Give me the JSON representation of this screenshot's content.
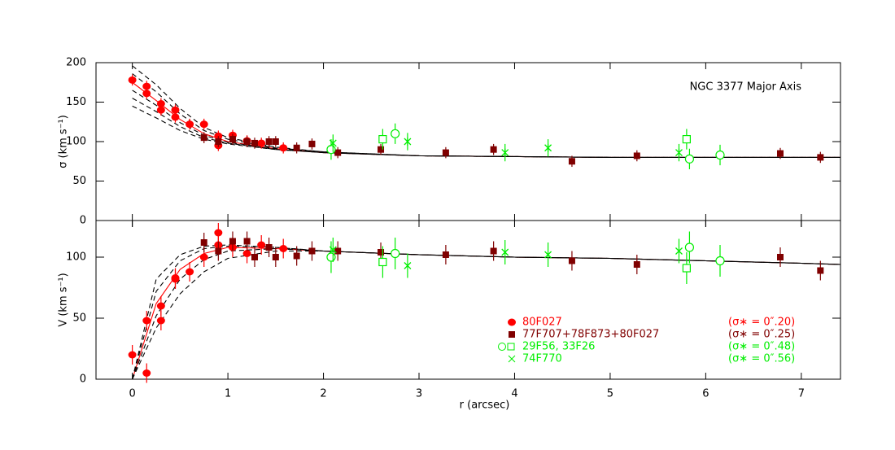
{
  "chart_data": [
    {
      "type": "scatter",
      "ylabel": "σ (km s⁻¹)",
      "annotation": "NGC 3377 Major Axis",
      "ylim": [
        0,
        200
      ],
      "yticks": [
        0,
        50,
        100,
        150,
        200
      ],
      "series": [
        {
          "color": "#ff0000",
          "marker": "circle",
          "error": 7,
          "x": [
            0,
            0.15,
            0.15,
            0.3,
            0.3,
            0.45,
            0.45,
            0.6,
            0.75,
            0.9,
            0.9,
            1.05,
            1.2,
            1.35,
            1.58
          ],
          "values": [
            178,
            170,
            161,
            148,
            140,
            140,
            131,
            122,
            122,
            107,
            95,
            108,
            101,
            98,
            92
          ]
        },
        {
          "color": "#800000",
          "marker": "square",
          "error": 7,
          "x": [
            0.75,
            0.9,
            1.05,
            1.2,
            1.28,
            1.43,
            1.5,
            1.72,
            1.88,
            2.15,
            2.6,
            3.28,
            3.78,
            4.6,
            5.28,
            6.78,
            7.2
          ],
          "values": [
            105,
            100,
            103,
            100,
            98,
            100,
            100,
            92,
            97,
            86,
            90,
            86,
            90,
            75,
            82,
            85,
            80
          ]
        },
        {
          "color": "#00ee00",
          "marker": "open-circle",
          "error": 13,
          "x": [
            2.08,
            2.75,
            5.83,
            6.15
          ],
          "values": [
            90,
            110,
            78,
            83
          ]
        },
        {
          "color": "#00ee00",
          "marker": "open-square",
          "error": 13,
          "x": [
            2.62,
            5.8
          ],
          "values": [
            103,
            103
          ]
        },
        {
          "color": "#00ee00",
          "marker": "asterisk",
          "error": 11,
          "x": [
            2.1,
            2.88,
            3.9,
            4.35,
            5.72
          ],
          "values": [
            98,
            100,
            86,
            92,
            86
          ]
        }
      ],
      "model_x": [
        0,
        0.25,
        0.5,
        0.75,
        1,
        1.5,
        2,
        3,
        4,
        5,
        6,
        7,
        7.41
      ],
      "models": [
        {
          "color": "#ff0000",
          "dash": false,
          "values": [
            175,
            152,
            128,
            110,
            100,
            91,
            86,
            82,
            81,
            80,
            80,
            80,
            80
          ]
        },
        {
          "color": "#000000",
          "dash": true,
          "values": [
            196,
            172,
            142,
            118,
            105,
            93,
            87,
            82,
            81,
            80,
            80,
            80,
            80
          ]
        },
        {
          "color": "#000000",
          "dash": true,
          "values": [
            186,
            163,
            135,
            114,
            103,
            92,
            87,
            82,
            81,
            80,
            80,
            80,
            80
          ]
        },
        {
          "color": "#000000",
          "dash": true,
          "values": [
            165,
            146,
            124,
            108,
            99,
            91,
            86,
            82,
            81,
            80,
            80,
            80,
            80
          ]
        },
        {
          "color": "#000000",
          "dash": true,
          "values": [
            155,
            138,
            119,
            105,
            98,
            90,
            86,
            82,
            81,
            80,
            80,
            80,
            80
          ]
        },
        {
          "color": "#000000",
          "dash": true,
          "values": [
            145,
            130,
            114,
            103,
            97,
            90,
            86,
            82,
            81,
            80,
            80,
            80,
            80
          ]
        }
      ]
    },
    {
      "type": "scatter",
      "ylabel": "V (km s⁻¹)",
      "xlabel": "r (arcsec)",
      "xlim": [
        -0.38,
        7.41
      ],
      "xticks": [
        0,
        1,
        2,
        3,
        4,
        5,
        6,
        7
      ],
      "ylim": [
        0,
        130
      ],
      "yticks": [
        0,
        50,
        100
      ],
      "series": [
        {
          "name": "80F027",
          "note": "(σ∗ = 0″.20)",
          "color": "#ff0000",
          "marker": "circle",
          "error": 8,
          "x": [
            0,
            0.15,
            0.15,
            0.3,
            0.3,
            0.45,
            0.45,
            0.6,
            0.75,
            0.9,
            0.9,
            1.05,
            1.2,
            1.35,
            1.58
          ],
          "values": [
            20,
            5,
            48,
            60,
            48,
            82,
            83,
            88,
            100,
            120,
            110,
            108,
            103,
            110,
            107
          ]
        },
        {
          "name": "77F707+78F873+80F027",
          "note": "(σ∗ = 0″.25)",
          "color": "#800000",
          "marker": "square",
          "error": 8,
          "x": [
            0.75,
            0.9,
            1.05,
            1.2,
            1.28,
            1.43,
            1.5,
            1.72,
            1.88,
            2.15,
            2.6,
            3.28,
            3.78,
            4.6,
            5.28,
            6.78,
            7.2
          ],
          "values": [
            112,
            105,
            113,
            113,
            100,
            108,
            100,
            101,
            105,
            105,
            104,
            102,
            105,
            97,
            94,
            100,
            89
          ]
        },
        {
          "name": "29F56, 33F26",
          "note": "(σ∗ = 0″.48)",
          "color": "#00ee00",
          "marker": "open-circle",
          "error": 13,
          "x": [
            2.08,
            2.75,
            5.83,
            6.15
          ],
          "values": [
            100,
            103,
            108,
            97
          ]
        },
        {
          "color": "#00ee00",
          "marker": "open-square",
          "error": 13,
          "x": [
            2.62,
            5.8
          ],
          "values": [
            96,
            91
          ]
        },
        {
          "name": "74F770",
          "note": "(σ∗ = 0″.56)",
          "color": "#00ee00",
          "marker": "cross",
          "error": 10,
          "x": [
            2.1,
            2.88,
            3.9,
            4.35,
            5.72
          ],
          "values": [
            106,
            93,
            104,
            102,
            105
          ]
        }
      ],
      "model_x": [
        0,
        0.25,
        0.5,
        0.75,
        1,
        1.5,
        2,
        3,
        4,
        5,
        6,
        7,
        7.41
      ],
      "models": [
        {
          "color": "#ff0000",
          "dash": false,
          "values": [
            0,
            62,
            90,
            103,
            108,
            107,
            105,
            102,
            100,
            99,
            97,
            95,
            94
          ]
        },
        {
          "color": "#000000",
          "dash": true,
          "values": [
            0,
            82,
            102,
            109,
            110,
            108,
            105,
            102,
            100,
            99,
            97,
            95,
            94
          ]
        },
        {
          "color": "#000000",
          "dash": true,
          "values": [
            0,
            72,
            97,
            107,
            109,
            108,
            105,
            102,
            100,
            99,
            97,
            95,
            94
          ]
        },
        {
          "color": "#000000",
          "dash": true,
          "values": [
            0,
            52,
            82,
            98,
            105,
            107,
            105,
            102,
            100,
            99,
            97,
            95,
            94
          ]
        },
        {
          "color": "#000000",
          "dash": true,
          "values": [
            0,
            42,
            70,
            88,
            99,
            105,
            105,
            102,
            100,
            99,
            97,
            95,
            94
          ]
        }
      ]
    }
  ]
}
